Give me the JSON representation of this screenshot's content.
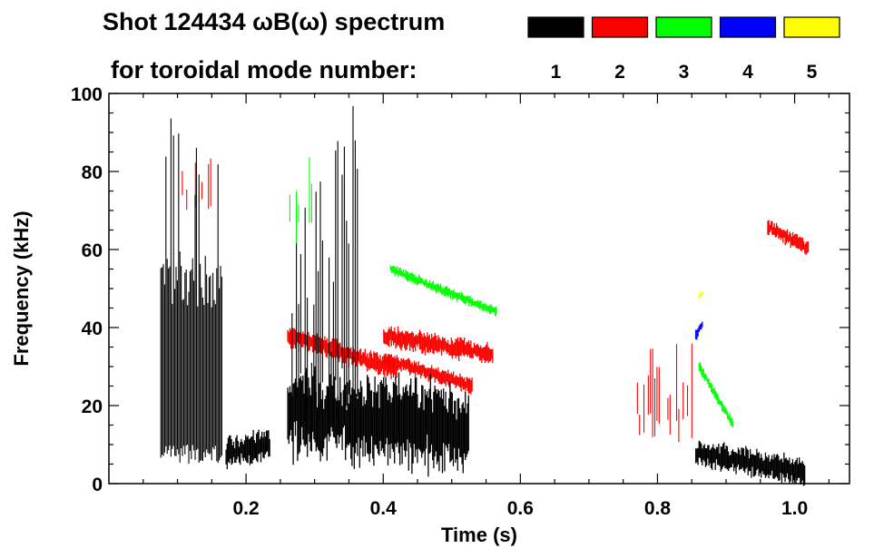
{
  "chart_data": {
    "type": "heatmap",
    "title_line1": "Shot 124434 ωB(ω) spectrum",
    "title_line2": "for toroidal mode number:",
    "xlabel": "Time (s)",
    "ylabel": "Frequency (kHz)",
    "xlim": [
      0.0,
      1.08
    ],
    "ylim": [
      0,
      100
    ],
    "x_ticks": [
      {
        "value": 0.2,
        "label": "0.2"
      },
      {
        "value": 0.4,
        "label": "0.4"
      },
      {
        "value": 0.6,
        "label": "0.6"
      },
      {
        "value": 0.8,
        "label": "0.8"
      },
      {
        "value": 1.0,
        "label": "1.0"
      }
    ],
    "y_ticks": [
      {
        "value": 0,
        "label": "0"
      },
      {
        "value": 20,
        "label": "20"
      },
      {
        "value": 40,
        "label": "40"
      },
      {
        "value": 60,
        "label": "60"
      },
      {
        "value": 80,
        "label": "80"
      },
      {
        "value": 100,
        "label": "100"
      }
    ],
    "legend": [
      {
        "mode": "1",
        "color": "#000000"
      },
      {
        "mode": "2",
        "color": "#ff0000"
      },
      {
        "mode": "3",
        "color": "#00ff00"
      },
      {
        "mode": "4",
        "color": "#0000ff"
      },
      {
        "mode": "5",
        "color": "#ffff00"
      }
    ],
    "features": [
      {
        "mode": "1",
        "kind": "burst",
        "t_start": 0.075,
        "t_end": 0.165,
        "f_low": 5,
        "f_high": 94,
        "f_core": 55
      },
      {
        "mode": "1",
        "kind": "band",
        "t_start": 0.17,
        "t_end": 0.235,
        "f_start": 8,
        "f_end": 10,
        "width": 6
      },
      {
        "mode": "1",
        "kind": "band",
        "t_start": 0.26,
        "t_end": 0.525,
        "f_start": 18,
        "f_end": 14,
        "width": 16
      },
      {
        "mode": "1",
        "kind": "spikes",
        "t_start": 0.26,
        "t_end": 0.38,
        "f_low": 5,
        "f_high": 100
      },
      {
        "mode": "1",
        "kind": "band",
        "t_start": 0.855,
        "t_end": 1.015,
        "f_start": 8,
        "f_end": 3,
        "width": 5
      },
      {
        "mode": "2",
        "kind": "band",
        "t_start": 0.26,
        "t_end": 0.42,
        "f_start": 38,
        "f_end": 29,
        "width": 4
      },
      {
        "mode": "2",
        "kind": "band",
        "t_start": 0.4,
        "t_end": 0.56,
        "f_start": 38,
        "f_end": 33,
        "width": 4
      },
      {
        "mode": "2",
        "kind": "band",
        "t_start": 0.4,
        "t_end": 0.53,
        "f_start": 32,
        "f_end": 25,
        "width": 3
      },
      {
        "mode": "2",
        "kind": "spikes",
        "t_start": 0.77,
        "t_end": 0.85,
        "f_low": 10,
        "f_high": 37
      },
      {
        "mode": "2",
        "kind": "band",
        "t_start": 0.96,
        "t_end": 1.02,
        "f_start": 66,
        "f_end": 60,
        "width": 3
      },
      {
        "mode": "2",
        "kind": "spikes",
        "t_start": 0.1,
        "t_end": 0.15,
        "f_low": 70,
        "f_high": 85
      },
      {
        "mode": "3",
        "kind": "band",
        "t_start": 0.41,
        "t_end": 0.565,
        "f_start": 55,
        "f_end": 44,
        "width": 2
      },
      {
        "mode": "3",
        "kind": "band",
        "t_start": 0.86,
        "t_end": 0.91,
        "f_start": 30,
        "f_end": 15,
        "width": 2
      },
      {
        "mode": "3",
        "kind": "spikes",
        "t_start": 0.26,
        "t_end": 0.3,
        "f_low": 60,
        "f_high": 85
      },
      {
        "mode": "4",
        "kind": "spot",
        "t_start": 0.855,
        "t_end": 0.865,
        "f_start": 38,
        "f_end": 41,
        "width": 2
      },
      {
        "mode": "5",
        "kind": "spot",
        "t_start": 0.86,
        "t_end": 0.865,
        "f_start": 48,
        "f_end": 49,
        "width": 1
      }
    ]
  }
}
